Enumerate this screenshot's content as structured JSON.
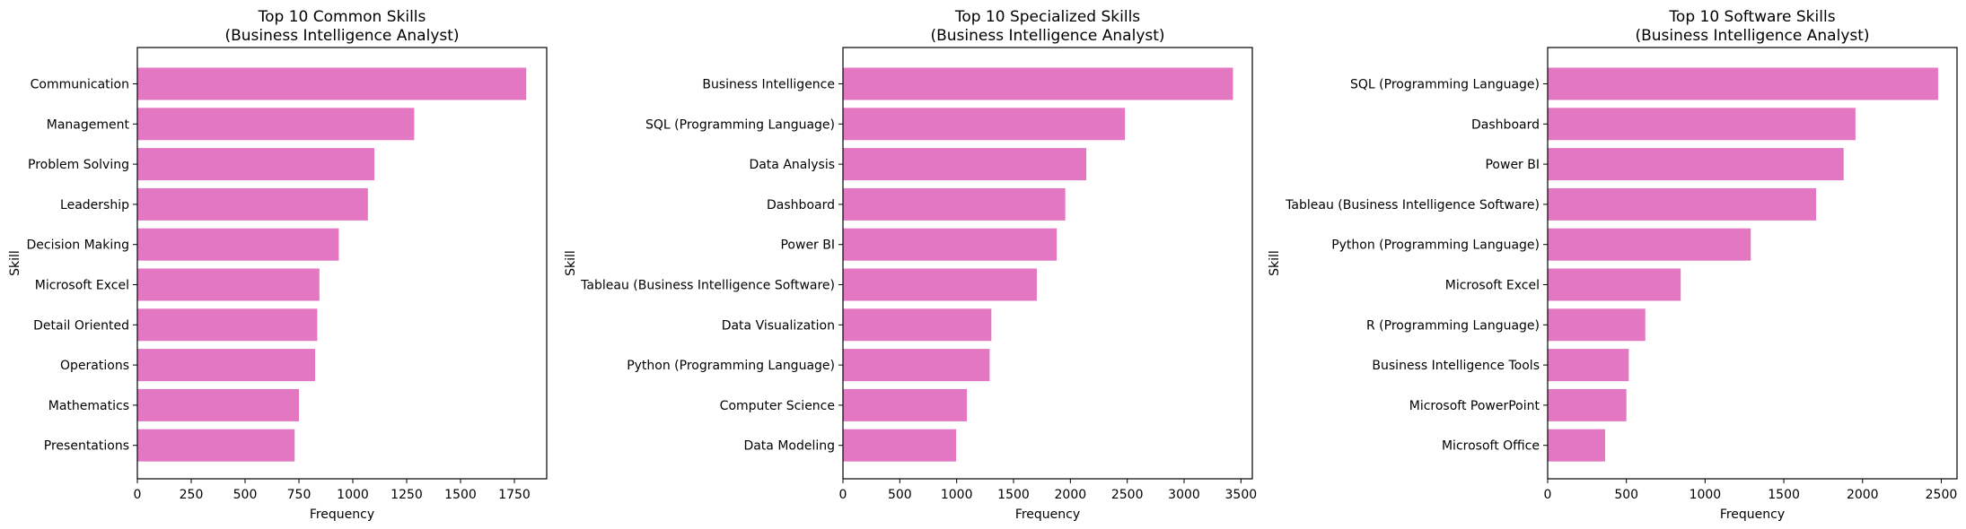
{
  "figure": {
    "bar_color": "#e377c2",
    "background": "#ffffff"
  },
  "chart_data": [
    {
      "type": "bar",
      "orientation": "horizontal",
      "title": "Top 10 Common Skills\n(Business Intelligence Analyst)",
      "xlabel": "Frequency",
      "ylabel": "Skill",
      "xlim": [
        0,
        1900
      ],
      "xticks": [
        0,
        250,
        500,
        750,
        1000,
        1250,
        1500,
        1750
      ],
      "grid": false,
      "categories": [
        "Communication",
        "Management",
        "Problem Solving",
        "Leadership",
        "Decision Making",
        "Microsoft Excel",
        "Detail Oriented",
        "Operations",
        "Mathematics",
        "Presentations"
      ],
      "values": [
        1805,
        1285,
        1100,
        1070,
        935,
        845,
        835,
        825,
        750,
        730
      ]
    },
    {
      "type": "bar",
      "orientation": "horizontal",
      "title": "Top 10 Specialized Skills\n(Business Intelligence Analyst)",
      "xlabel": "Frequency",
      "ylabel": "Skill",
      "xlim": [
        0,
        3600
      ],
      "xticks": [
        0,
        500,
        1000,
        1500,
        2000,
        2500,
        3000,
        3500
      ],
      "grid": false,
      "categories": [
        "Business Intelligence",
        "SQL (Programming Language)",
        "Data Analysis",
        "Dashboard",
        "Power BI",
        "Tableau (Business Intelligence Software)",
        "Data Visualization",
        "Python (Programming Language)",
        "Computer Science",
        "Data Modeling"
      ],
      "values": [
        3430,
        2480,
        2140,
        1955,
        1880,
        1705,
        1305,
        1290,
        1090,
        995
      ]
    },
    {
      "type": "bar",
      "orientation": "horizontal",
      "title": "Top 10 Software Skills\n(Business Intelligence Analyst)",
      "xlabel": "Frequency",
      "ylabel": "Skill",
      "xlim": [
        0,
        2600
      ],
      "xticks": [
        0,
        500,
        1000,
        1500,
        2000,
        2500
      ],
      "grid": false,
      "categories": [
        "SQL (Programming Language)",
        "Dashboard",
        "Power BI",
        "Tableau (Business Intelligence Software)",
        "Python (Programming Language)",
        "Microsoft Excel",
        "R (Programming Language)",
        "Business Intelligence Tools",
        "Microsoft PowerPoint",
        "Microsoft Office"
      ],
      "values": [
        2480,
        1955,
        1880,
        1705,
        1290,
        845,
        620,
        515,
        500,
        365
      ]
    }
  ]
}
